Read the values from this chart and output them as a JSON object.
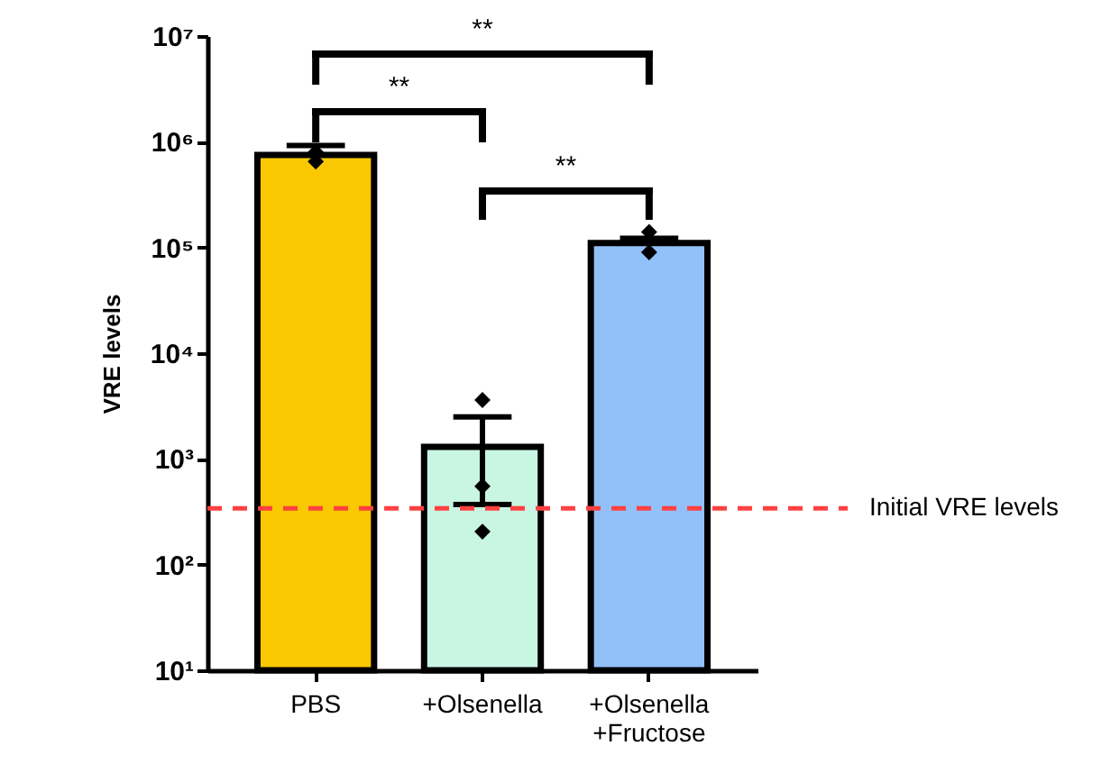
{
  "chart_data": {
    "type": "bar",
    "ylabel": "VRE levels",
    "categories": [
      "PBS",
      "+Olsenella",
      "+Olsenella +Fructose"
    ],
    "log": "y",
    "ylim": [
      10,
      10000000
    ],
    "yticks": [
      {
        "value": 10,
        "label": "10¹"
      },
      {
        "value": 100,
        "label": "10²"
      },
      {
        "value": 1000,
        "label": "10³"
      },
      {
        "value": 10000,
        "label": "10⁴"
      },
      {
        "value": 100000,
        "label": "10⁵"
      },
      {
        "value": 1000000,
        "label": "10⁶"
      },
      {
        "value": 10000000,
        "label": "10⁷"
      }
    ],
    "series": [
      {
        "values": [
          750000,
          1300,
          110000
        ],
        "colors": [
          "#f9c800",
          "#c9f5e3",
          "#92c0f8"
        ],
        "errors": [
          [
            750000,
            920000
          ],
          [
            370,
            2500
          ],
          [
            110000,
            122000
          ]
        ]
      },
      {
        "type": "scatter",
        "marker": "diamond",
        "color": "#000000",
        "x": [
          "PBS",
          "PBS",
          "PBS",
          "+Olsenella",
          "+Olsenella",
          "+Olsenella",
          "+Olsenella +Fructose",
          "+Olsenella +Fructose",
          "+Olsenella +Fructose"
        ],
        "values": [
          null,
          800000,
          650000,
          3600,
          550,
          205,
          140000,
          null,
          90000
        ]
      }
    ],
    "ref_lines": [
      {
        "axis": "y",
        "value": 340,
        "label": "Initial VRE levels",
        "color": "#ff4040",
        "line_style": "dashed"
      }
    ],
    "annotations": [
      "**",
      "**",
      "**"
    ],
    "grid": false
  }
}
